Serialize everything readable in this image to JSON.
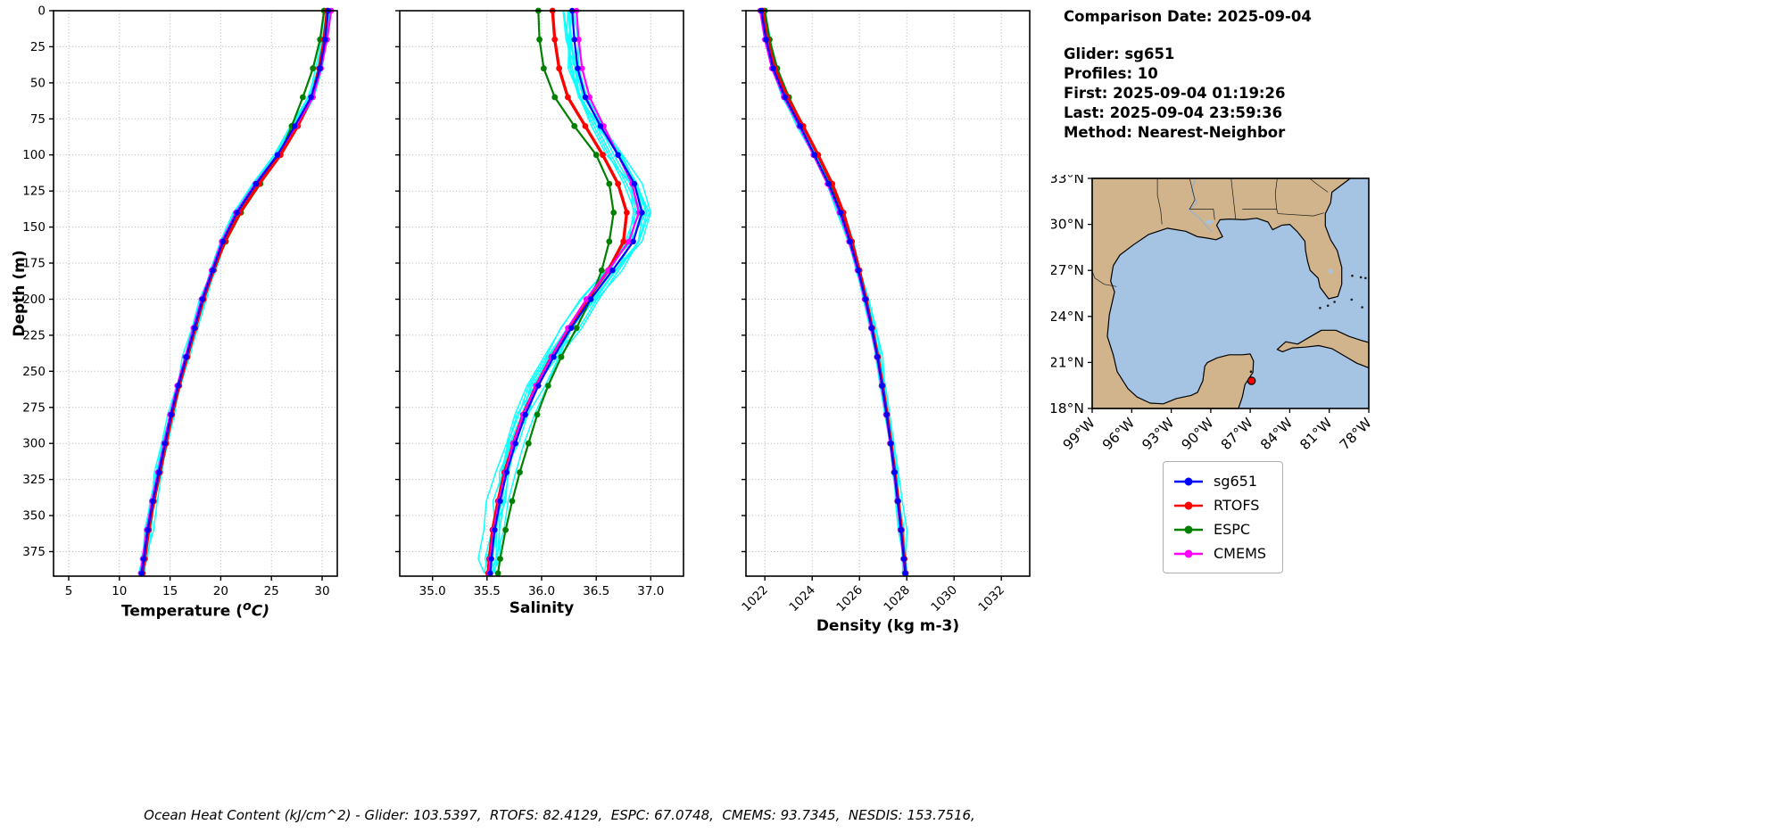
{
  "figure": {
    "background": "#ffffff"
  },
  "info_panel": {
    "comparison_date": "Comparison Date: 2025-09-04",
    "glider": "Glider: sg651",
    "profiles": "Profiles: 10",
    "first": "First: 2025-09-04 01:19:26",
    "last": "Last: 2025-09-04 23:59:36",
    "method": "Method: Nearest-Neighbor"
  },
  "caption": "Ocean Heat Content (kJ/cm^2) - Glider: 103.5397,  RTOFS: 82.4129,  ESPC: 67.0748,  CMEMS: 93.7345,  NESDIS: 153.7516,",
  "legend": {
    "items": [
      {
        "label": "sg651",
        "color": "#0000ff"
      },
      {
        "label": "RTOFS",
        "color": "#ff0000"
      },
      {
        "label": "ESPC",
        "color": "#008000"
      },
      {
        "label": "CMEMS",
        "color": "#ff00ff"
      }
    ]
  },
  "depth_axis": {
    "label": "Depth (m)",
    "lim": [
      0,
      392
    ],
    "ticks": [
      0,
      25,
      50,
      75,
      100,
      125,
      150,
      175,
      200,
      225,
      250,
      275,
      300,
      325,
      350,
      375
    ]
  },
  "map": {
    "extent": {
      "lon_min": -99,
      "lon_max": -78,
      "lat_min": 18,
      "lat_max": 33
    },
    "lat_ticks": [
      33,
      30,
      27,
      24,
      21,
      18
    ],
    "lat_labels": [
      "33°N",
      "30°N",
      "27°N",
      "24°N",
      "21°N",
      "18°N"
    ],
    "lon_ticks": [
      -99,
      -96,
      -93,
      -90,
      -87,
      -84,
      -81,
      -78
    ],
    "lon_labels": [
      "99°W",
      "96°W",
      "93°W",
      "90°W",
      "87°W",
      "84°W",
      "81°W",
      "78°W"
    ],
    "land_color": "#d2b48c",
    "ocean_color": "#a5c3e3",
    "glider_marker": {
      "lon": -86.9,
      "lat": 19.8,
      "color": "#ff0000"
    }
  },
  "chart_data": [
    {
      "type": "line",
      "title": "",
      "xlabel": "Temperature (°C)",
      "xlabel_parts": {
        "p1": "Temperature (",
        "sup": "o",
        "p2": "C)"
      },
      "ylabel": "Depth (m)",
      "xlim": [
        3.5,
        31.5
      ],
      "xticks": [
        5,
        10,
        15,
        20,
        25,
        30
      ],
      "xtick_labels": [
        "5",
        "10",
        "15",
        "20",
        "25",
        "30"
      ],
      "rotate_xticks": false,
      "grid": true,
      "depths": [
        0,
        20,
        40,
        60,
        80,
        100,
        120,
        140,
        160,
        180,
        200,
        220,
        240,
        260,
        280,
        300,
        320,
        340,
        360,
        380,
        390
      ],
      "series": [
        {
          "name": "sg651",
          "color": "#0000ff",
          "width": 2.2,
          "marker_r": 3.2,
          "values": [
            30.6,
            30.3,
            29.8,
            28.9,
            27.3,
            25.6,
            23.5,
            21.6,
            20.2,
            19.2,
            18.2,
            17.4,
            16.6,
            15.8,
            15.1,
            14.5,
            13.9,
            13.3,
            12.8,
            12.4,
            12.2
          ]
        },
        {
          "name": "RTOFS",
          "color": "#ff0000",
          "width": 3.4,
          "marker_r": 3.4,
          "values": [
            30.5,
            30.2,
            29.7,
            29.0,
            27.6,
            25.9,
            23.8,
            21.9,
            20.4,
            19.3,
            18.3,
            17.5,
            16.7,
            15.9,
            15.2,
            14.6,
            14.0,
            13.4,
            12.9,
            12.5,
            12.3
          ]
        },
        {
          "name": "ESPC",
          "color": "#008000",
          "width": 2.2,
          "marker_r": 3.4,
          "values": [
            30.2,
            29.8,
            29.1,
            28.1,
            27.0,
            25.8,
            23.9,
            22.0,
            20.5,
            19.3,
            18.2,
            17.4,
            16.6,
            15.8,
            15.1,
            14.5,
            13.9,
            13.3,
            12.8,
            12.4,
            12.2
          ]
        },
        {
          "name": "CMEMS",
          "color": "#ff00ff",
          "width": 2.2,
          "marker_r": 3.2,
          "values": [
            30.9,
            30.5,
            29.9,
            29.1,
            27.4,
            25.6,
            23.4,
            21.5,
            20.1,
            19.1,
            18.1,
            17.3,
            16.5,
            15.7,
            15.0,
            14.4,
            13.8,
            13.2,
            12.7,
            12.3,
            12.1
          ]
        }
      ],
      "glider_profiles": {
        "count": 10,
        "color": "#00ffff",
        "spread": 0.5,
        "seed": 11
      }
    },
    {
      "type": "line",
      "title": "",
      "xlabel": "Salinity",
      "xlabel_parts": {
        "p1": "Salinity",
        "sup": "",
        "p2": ""
      },
      "ylabel": "Depth (m)",
      "xlim": [
        34.7,
        37.3
      ],
      "xticks": [
        35.0,
        35.5,
        36.0,
        36.5,
        37.0
      ],
      "xtick_labels": [
        "35.0",
        "35.5",
        "36.0",
        "36.5",
        "37.0"
      ],
      "rotate_xticks": false,
      "grid": true,
      "depths": [
        0,
        20,
        40,
        60,
        80,
        100,
        120,
        140,
        160,
        180,
        200,
        220,
        240,
        260,
        280,
        300,
        320,
        340,
        360,
        380,
        390
      ],
      "series": [
        {
          "name": "sg651",
          "color": "#0000ff",
          "width": 2.2,
          "marker_r": 3.2,
          "values": [
            36.28,
            36.3,
            36.33,
            36.4,
            36.54,
            36.7,
            36.85,
            36.92,
            36.84,
            36.65,
            36.45,
            36.27,
            36.11,
            35.97,
            35.85,
            35.76,
            35.68,
            35.62,
            35.57,
            35.54,
            35.53
          ]
        },
        {
          "name": "RTOFS",
          "color": "#ff0000",
          "width": 3.4,
          "marker_r": 3.4,
          "values": [
            36.1,
            36.12,
            36.16,
            36.24,
            36.4,
            36.56,
            36.7,
            36.78,
            36.75,
            36.61,
            36.42,
            36.25,
            36.09,
            35.95,
            35.83,
            35.74,
            35.66,
            35.6,
            35.55,
            35.52,
            35.51
          ]
        },
        {
          "name": "ESPC",
          "color": "#008000",
          "width": 2.2,
          "marker_r": 3.4,
          "values": [
            35.97,
            35.98,
            36.02,
            36.12,
            36.3,
            36.5,
            36.62,
            36.66,
            36.62,
            36.55,
            36.45,
            36.32,
            36.18,
            36.06,
            35.96,
            35.88,
            35.8,
            35.73,
            35.67,
            35.62,
            35.6
          ]
        },
        {
          "name": "CMEMS",
          "color": "#ff00ff",
          "width": 2.2,
          "marker_r": 3.2,
          "values": [
            36.32,
            36.34,
            36.37,
            36.44,
            36.57,
            36.7,
            36.83,
            36.89,
            36.8,
            36.61,
            36.41,
            36.24,
            36.09,
            35.95,
            35.83,
            35.74,
            35.67,
            35.61,
            35.56,
            35.53,
            35.52
          ]
        }
      ],
      "glider_profiles": {
        "count": 10,
        "color": "#00ffff",
        "spread": 0.1,
        "seed": 22
      }
    },
    {
      "type": "line",
      "title": "",
      "xlabel": "Density (kg m-3)",
      "xlabel_parts": {
        "p1": "Density (kg m-3)",
        "sup": "",
        "p2": ""
      },
      "ylabel": "Depth (m)",
      "xlim": [
        1021.2,
        1033.2
      ],
      "xticks": [
        1022,
        1024,
        1026,
        1028,
        1030,
        1032
      ],
      "xtick_labels": [
        "1022",
        "1024",
        "1026",
        "1028",
        "1030",
        "1032"
      ],
      "rotate_xticks": true,
      "grid": true,
      "depths": [
        0,
        20,
        40,
        60,
        80,
        100,
        120,
        140,
        160,
        180,
        200,
        220,
        240,
        260,
        280,
        300,
        320,
        340,
        360,
        380,
        390
      ],
      "series": [
        {
          "name": "sg651",
          "color": "#0000ff",
          "width": 2.2,
          "marker_r": 3.2,
          "values": [
            1021.85,
            1022.05,
            1022.35,
            1022.85,
            1023.5,
            1024.1,
            1024.7,
            1025.2,
            1025.6,
            1025.95,
            1026.25,
            1026.52,
            1026.76,
            1026.96,
            1027.15,
            1027.32,
            1027.48,
            1027.62,
            1027.76,
            1027.88,
            1027.94
          ]
        },
        {
          "name": "RTOFS",
          "color": "#ff0000",
          "width": 3.4,
          "marker_r": 3.4,
          "values": [
            1021.9,
            1022.1,
            1022.42,
            1022.95,
            1023.62,
            1024.25,
            1024.85,
            1025.32,
            1025.68,
            1026.0,
            1026.28,
            1026.54,
            1026.78,
            1026.98,
            1027.17,
            1027.34,
            1027.5,
            1027.64,
            1027.78,
            1027.9,
            1027.96
          ]
        },
        {
          "name": "ESPC",
          "color": "#008000",
          "width": 2.2,
          "marker_r": 3.4,
          "values": [
            1022.0,
            1022.2,
            1022.52,
            1023.02,
            1023.62,
            1024.22,
            1024.8,
            1025.26,
            1025.62,
            1025.95,
            1026.24,
            1026.5,
            1026.74,
            1026.94,
            1027.13,
            1027.3,
            1027.46,
            1027.6,
            1027.74,
            1027.86,
            1027.92
          ]
        },
        {
          "name": "CMEMS",
          "color": "#ff00ff",
          "width": 2.2,
          "marker_r": 3.2,
          "values": [
            1021.8,
            1022.0,
            1022.3,
            1022.8,
            1023.45,
            1024.05,
            1024.65,
            1025.16,
            1025.56,
            1025.92,
            1026.22,
            1026.49,
            1026.74,
            1026.94,
            1027.13,
            1027.3,
            1027.46,
            1027.6,
            1027.74,
            1027.86,
            1027.92
          ]
        }
      ],
      "glider_profiles": {
        "count": 10,
        "color": "#00ffff",
        "spread": 0.2,
        "seed": 33
      }
    }
  ]
}
